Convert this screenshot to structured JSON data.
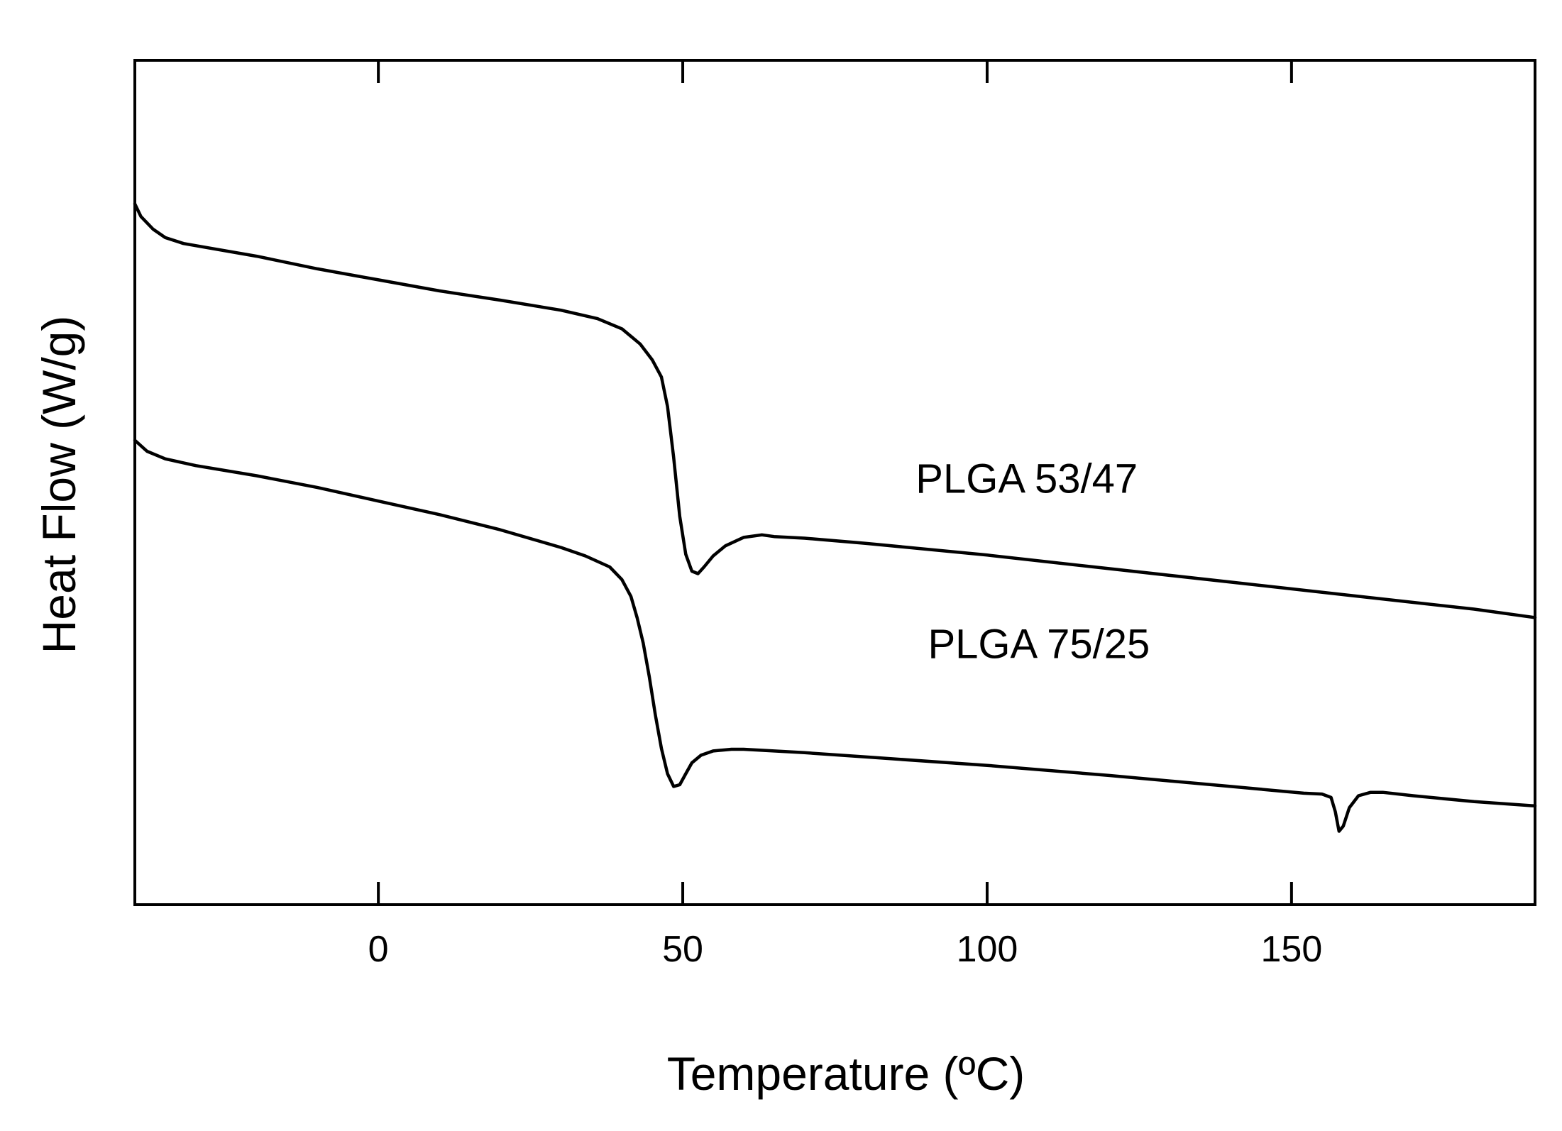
{
  "chart_data": {
    "type": "line",
    "xlabel": "Temperature (ºC)",
    "ylabel": "Heat Flow (W/g)",
    "xlim": [
      -40,
      190
    ],
    "ylim": [
      0,
      100
    ],
    "xticks": [
      0,
      50,
      100,
      150
    ],
    "yticks_labeled": false,
    "grid": false,
    "legend": "none",
    "colors": {
      "line": "#000000",
      "axes": "#000000",
      "background": "#ffffff"
    },
    "series": [
      {
        "name": "PLGA 53/47",
        "x": [
          -40,
          -39,
          -37,
          -35,
          -32,
          -28,
          -20,
          -10,
          0,
          10,
          20,
          30,
          36,
          40,
          43,
          45,
          46.5,
          47.5,
          48.5,
          49.5,
          50.5,
          51.5,
          52.5,
          53.5,
          55,
          57,
          60,
          63,
          65,
          70,
          80,
          100,
          120,
          140,
          160,
          180,
          190
        ],
        "y": [
          83,
          81.5,
          80,
          79,
          78.3,
          77.8,
          76.8,
          75.3,
          74,
          72.7,
          71.6,
          70.4,
          69.4,
          68.2,
          66.4,
          64.5,
          62.5,
          59,
          53,
          46,
          41.5,
          39.5,
          39.2,
          40,
          41.3,
          42.5,
          43.5,
          43.8,
          43.6,
          43.4,
          42.8,
          41.4,
          39.8,
          38.2,
          36.6,
          35,
          34
        ]
      },
      {
        "name": "PLGA 75/25",
        "x": [
          -40,
          -38,
          -35,
          -30,
          -20,
          -10,
          0,
          10,
          20,
          30,
          34,
          38,
          40,
          41.5,
          42.5,
          43.5,
          44.5,
          45.5,
          46.5,
          47.5,
          48.5,
          49.5,
          50.5,
          51.5,
          53,
          55,
          58,
          60,
          65,
          70,
          80,
          100,
          120,
          140,
          152,
          155,
          156.5,
          157.2,
          157.8,
          158.5,
          159.5,
          161,
          163,
          165,
          170,
          180,
          190
        ],
        "y": [
          55,
          53.7,
          52.8,
          52,
          50.8,
          49.4,
          47.8,
          46.2,
          44.4,
          42.3,
          41.3,
          40,
          38.5,
          36.5,
          34,
          31,
          27,
          22.5,
          18.5,
          15.5,
          14,
          14.2,
          15.5,
          16.8,
          17.7,
          18.2,
          18.4,
          18.4,
          18.2,
          18,
          17.5,
          16.5,
          15.3,
          14,
          13.2,
          13.1,
          12.7,
          11,
          8.7,
          9.3,
          11.5,
          12.9,
          13.3,
          13.3,
          12.9,
          12.2,
          11.7
        ]
      }
    ],
    "annotations": [
      {
        "text": "PLGA 53/47",
        "x": 106.5,
        "y": 48.8
      },
      {
        "text": "PLGA 75/25",
        "x": 108.5,
        "y": 29.2
      }
    ]
  }
}
